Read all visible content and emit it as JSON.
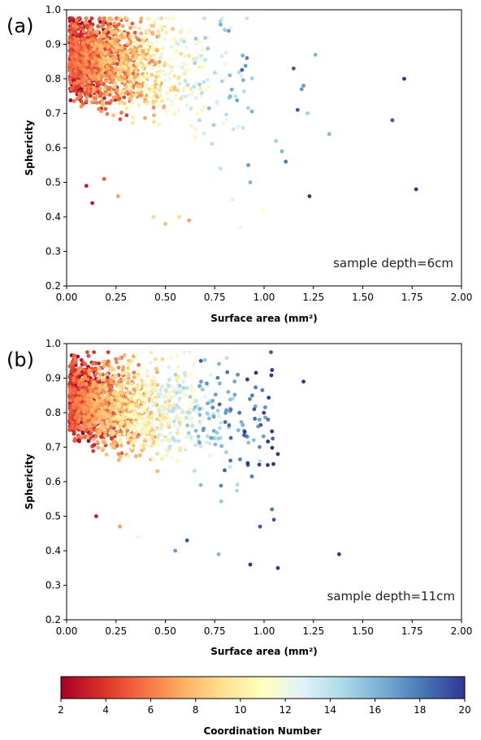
{
  "chart_data": [
    {
      "type": "scatter",
      "panel_label": "(a)",
      "annotation": "sample depth=6cm",
      "xlabel": "Surface area (mm²)",
      "ylabel": "Sphericity",
      "xlim": [
        0.0,
        2.0
      ],
      "ylim": [
        0.2,
        1.0
      ],
      "x_ticks": [
        "0.00",
        "0.25",
        "0.50",
        "0.75",
        "1.00",
        "1.25",
        "1.50",
        "1.75",
        "2.00"
      ],
      "y_ticks": [
        "0.2",
        "0.3",
        "0.4",
        "0.5",
        "0.6",
        "0.7",
        "0.8",
        "0.9",
        "1.0"
      ],
      "color_variable": "Coordination Number",
      "points": [
        {
          "x": 1.77,
          "y": 0.48,
          "c": 20
        },
        {
          "x": 1.71,
          "y": 0.8,
          "c": 20
        },
        {
          "x": 1.65,
          "y": 0.68,
          "c": 19
        },
        {
          "x": 1.33,
          "y": 0.64,
          "c": 16
        },
        {
          "x": 1.26,
          "y": 0.87,
          "c": 16
        },
        {
          "x": 1.23,
          "y": 0.46,
          "c": 20
        },
        {
          "x": 1.22,
          "y": 0.7,
          "c": 15
        },
        {
          "x": 1.2,
          "y": 0.78,
          "c": 17
        },
        {
          "x": 1.19,
          "y": 0.77,
          "c": 17
        },
        {
          "x": 1.17,
          "y": 0.71,
          "c": 19
        },
        {
          "x": 1.15,
          "y": 0.83,
          "c": 19
        },
        {
          "x": 1.11,
          "y": 0.56,
          "c": 18
        },
        {
          "x": 1.09,
          "y": 0.59,
          "c": 16
        },
        {
          "x": 1.06,
          "y": 0.62,
          "c": 15
        },
        {
          "x": 0.92,
          "y": 0.55,
          "c": 17
        },
        {
          "x": 0.93,
          "y": 0.5,
          "c": 16
        },
        {
          "x": 0.99,
          "y": 0.42,
          "c": 11
        },
        {
          "x": 0.88,
          "y": 0.37,
          "c": 12
        },
        {
          "x": 0.62,
          "y": 0.39,
          "c": 7
        },
        {
          "x": 0.57,
          "y": 0.4,
          "c": 9
        },
        {
          "x": 0.5,
          "y": 0.38,
          "c": 8
        },
        {
          "x": 0.44,
          "y": 0.4,
          "c": 9
        },
        {
          "x": 0.13,
          "y": 0.44,
          "c": 3
        },
        {
          "x": 0.26,
          "y": 0.46,
          "c": 7
        },
        {
          "x": 0.1,
          "y": 0.49,
          "c": 3
        },
        {
          "x": 0.19,
          "y": 0.51,
          "c": 5
        },
        {
          "x": 0.78,
          "y": 0.54,
          "c": 14
        },
        {
          "x": 0.84,
          "y": 0.45,
          "c": 13
        }
      ],
      "cluster": {
        "count": 1700,
        "seed": 11,
        "x_scale": 0.26,
        "y_mean": 0.82,
        "y_slope": 0.06,
        "y_spread": 0.075,
        "c_slope": 15
      }
    },
    {
      "type": "scatter",
      "panel_label": "(b)",
      "annotation": "sample depth=11cm",
      "xlabel": "Surface area (mm²)",
      "ylabel": "Sphericity",
      "xlim": [
        0.0,
        2.0
      ],
      "ylim": [
        0.2,
        1.0
      ],
      "x_ticks": [
        "0.00",
        "0.25",
        "0.50",
        "0.75",
        "1.00",
        "1.25",
        "1.50",
        "1.75",
        "2.00"
      ],
      "y_ticks": [
        "0.2",
        "0.3",
        "0.4",
        "0.5",
        "0.6",
        "0.7",
        "0.8",
        "0.9",
        "1.0"
      ],
      "color_variable": "Coordination Number",
      "points": [
        {
          "x": 1.38,
          "y": 0.39,
          "c": 20
        },
        {
          "x": 1.2,
          "y": 0.89,
          "c": 20
        },
        {
          "x": 1.07,
          "y": 0.35,
          "c": 20
        },
        {
          "x": 1.07,
          "y": 0.68,
          "c": 20
        },
        {
          "x": 1.05,
          "y": 0.49,
          "c": 19
        },
        {
          "x": 1.04,
          "y": 0.52,
          "c": 18
        },
        {
          "x": 0.98,
          "y": 0.47,
          "c": 19
        },
        {
          "x": 0.93,
          "y": 0.36,
          "c": 20
        },
        {
          "x": 1.02,
          "y": 0.78,
          "c": 18
        },
        {
          "x": 0.97,
          "y": 0.76,
          "c": 17
        },
        {
          "x": 0.95,
          "y": 0.81,
          "c": 19
        },
        {
          "x": 0.98,
          "y": 0.66,
          "c": 14
        },
        {
          "x": 0.94,
          "y": 0.85,
          "c": 18
        },
        {
          "x": 0.68,
          "y": 0.95,
          "c": 19
        },
        {
          "x": 0.55,
          "y": 0.4,
          "c": 17
        },
        {
          "x": 0.61,
          "y": 0.43,
          "c": 19
        },
        {
          "x": 0.77,
          "y": 0.39,
          "c": 16
        },
        {
          "x": 0.27,
          "y": 0.47,
          "c": 7
        },
        {
          "x": 0.15,
          "y": 0.5,
          "c": 3
        },
        {
          "x": 0.36,
          "y": 0.44,
          "c": 12
        }
      ],
      "cluster": {
        "count": 1900,
        "seed": 23,
        "x_scale": 0.3,
        "y_mean": 0.8,
        "y_slope": 0.08,
        "y_spread": 0.07,
        "c_slope": 17
      }
    }
  ],
  "colorbar": {
    "label": "Coordination Number",
    "range": [
      2,
      20
    ],
    "ticks": [
      "2",
      "4",
      "6",
      "8",
      "10",
      "12",
      "14",
      "16",
      "18",
      "20"
    ],
    "colors": [
      "#a50026",
      "#d73027",
      "#f46d43",
      "#fdae61",
      "#fee090",
      "#ffffbf",
      "#e0f3f8",
      "#abd9e9",
      "#74add1",
      "#4575b4",
      "#313695"
    ]
  }
}
